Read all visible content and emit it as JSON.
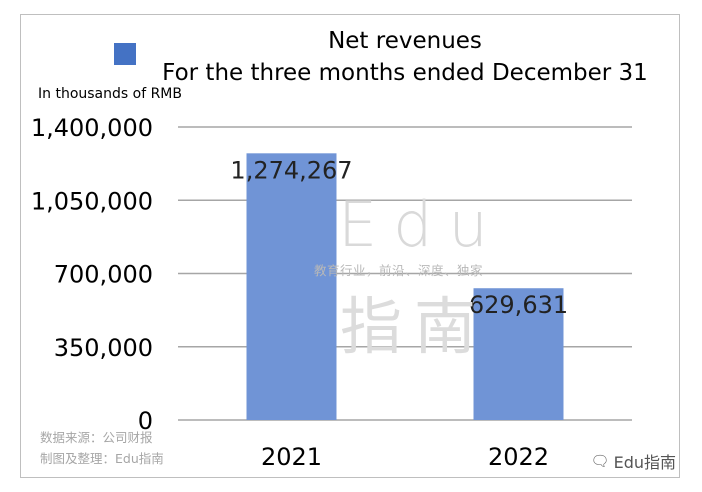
{
  "chart_data": {
    "type": "bar",
    "title": "Net revenues",
    "subtitle": "For the three months ended December 31",
    "ylabel": "In thousands of RMB",
    "categories": [
      "2021",
      "2022"
    ],
    "values": [
      1274267,
      629631
    ],
    "data_labels": [
      "1,274,267",
      "629,631"
    ],
    "yticks": [
      0,
      350000,
      700000,
      1050000,
      1400000
    ],
    "ytick_labels": [
      "0",
      "350,000",
      "700,000",
      "1,050,000",
      "1,400,000"
    ],
    "ylim": [
      0,
      1400000
    ],
    "grid": true,
    "legend_position": "top-left",
    "bar_color": "#7094d6",
    "legend_swatch_color": "#4472c4"
  },
  "watermark": {
    "main": "Edu",
    "tagline": "教育行业，前沿、深度、独家",
    "chinese": "指南"
  },
  "source": {
    "line1": "数据来源：公司财报",
    "line2": "制图及整理：Edu指南"
  },
  "brand": {
    "icon": "wechat-icon",
    "text": "Edu指南"
  }
}
